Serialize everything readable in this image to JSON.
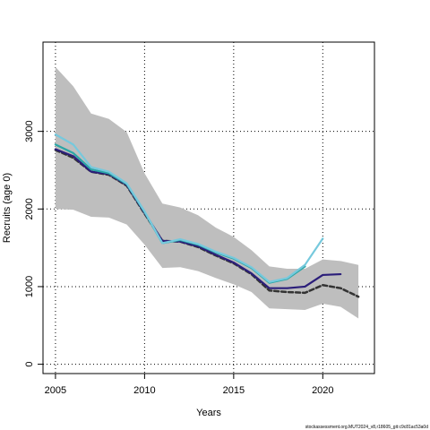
{
  "chart_data": {
    "type": "line",
    "xlabel": "Years",
    "ylabel": "Recruits (age 0)",
    "xlim": [
      2004.3,
      2022.9
    ],
    "ylim": [
      -120,
      4150
    ],
    "xticks": [
      2005,
      2010,
      2015,
      2020
    ],
    "yticks": [
      0,
      1000,
      2000,
      3000
    ],
    "grid": "dotted",
    "band": {
      "color": "#bebebe",
      "x": [
        2005,
        2006,
        2007,
        2008,
        2009,
        2010,
        2011,
        2012,
        2013,
        2014,
        2015,
        2016,
        2017,
        2018,
        2019,
        2020,
        2021,
        2022
      ],
      "upper": [
        3830,
        3580,
        3230,
        3160,
        2990,
        2460,
        2070,
        2020,
        1920,
        1760,
        1640,
        1470,
        1260,
        1230,
        1230,
        1350,
        1330,
        1280
      ],
      "lower": [
        2000,
        1990,
        1900,
        1890,
        1800,
        1540,
        1240,
        1250,
        1200,
        1110,
        1030,
        930,
        720,
        710,
        700,
        780,
        740,
        590
      ]
    },
    "series": [
      {
        "color": "#333333",
        "dash": "dashed",
        "x": [
          2005,
          2006,
          2007,
          2008,
          2009,
          2010,
          2011,
          2012,
          2013,
          2014,
          2015,
          2016,
          2017,
          2018,
          2019,
          2020,
          2021,
          2022
        ],
        "values": [
          2760,
          2660,
          2480,
          2440,
          2300,
          1940,
          1590,
          1580,
          1510,
          1400,
          1300,
          1160,
          950,
          930,
          920,
          1020,
          980,
          870
        ]
      },
      {
        "color": "#2b1e7a",
        "dash": "solid",
        "x": [
          2005,
          2006,
          2007,
          2008,
          2009,
          2010,
          2011,
          2012,
          2013,
          2014,
          2015,
          2016,
          2017,
          2018,
          2019,
          2020,
          2021
        ],
        "values": [
          2770,
          2680,
          2480,
          2450,
          2310,
          1950,
          1590,
          1580,
          1520,
          1410,
          1310,
          1170,
          980,
          980,
          1000,
          1150,
          1160
        ]
      },
      {
        "color": "#2aa6a6",
        "dash": "solid",
        "x": [
          2005,
          2006,
          2007,
          2008,
          2009,
          2010,
          2011,
          2012,
          2013,
          2014,
          2015,
          2016,
          2017,
          2018,
          2019
        ],
        "values": [
          2830,
          2720,
          2510,
          2460,
          2320,
          1960,
          1560,
          1600,
          1540,
          1440,
          1360,
          1240,
          1050,
          1100,
          1260
        ]
      },
      {
        "color": "#76c9dd",
        "dash": "solid",
        "x": [
          2005,
          2006,
          2007,
          2008,
          2009,
          2010,
          2011,
          2012,
          2013,
          2014,
          2015,
          2016,
          2017,
          2018,
          2019,
          2020
        ],
        "values": [
          2960,
          2830,
          2540,
          2480,
          2330,
          1970,
          1560,
          1610,
          1550,
          1450,
          1370,
          1250,
          1060,
          1110,
          1280,
          1620
        ]
      }
    ]
  },
  "credit": "stockassessment.org.MUT2024_v8,r18605_git:c9c81ac53a0d"
}
